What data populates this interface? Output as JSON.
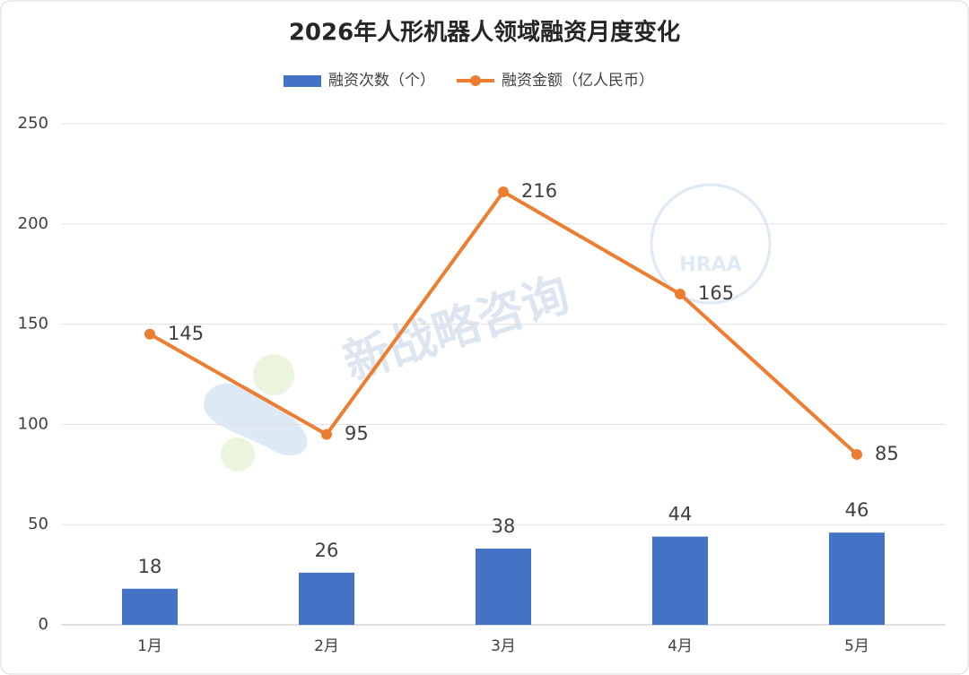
{
  "chart_data": {
    "type": "combo",
    "title": "2026年人形机器人领域融资月度变化",
    "categories": [
      "1月",
      "2月",
      "3月",
      "4月",
      "5月"
    ],
    "series": [
      {
        "name": "融资次数（个）",
        "type": "bar",
        "color": "#4472c4",
        "values": [
          18,
          26,
          38,
          44,
          46
        ]
      },
      {
        "name": "融资金额（亿人民币）",
        "type": "line",
        "color": "#ed7d31",
        "values": [
          145,
          95,
          216,
          165,
          85
        ]
      }
    ],
    "ylim": [
      0,
      250
    ],
    "yticks": [
      0,
      50,
      100,
      150,
      200,
      250
    ],
    "grid": true,
    "legend": "top",
    "watermarks": [
      "新战略咨询",
      "HRAA"
    ]
  }
}
